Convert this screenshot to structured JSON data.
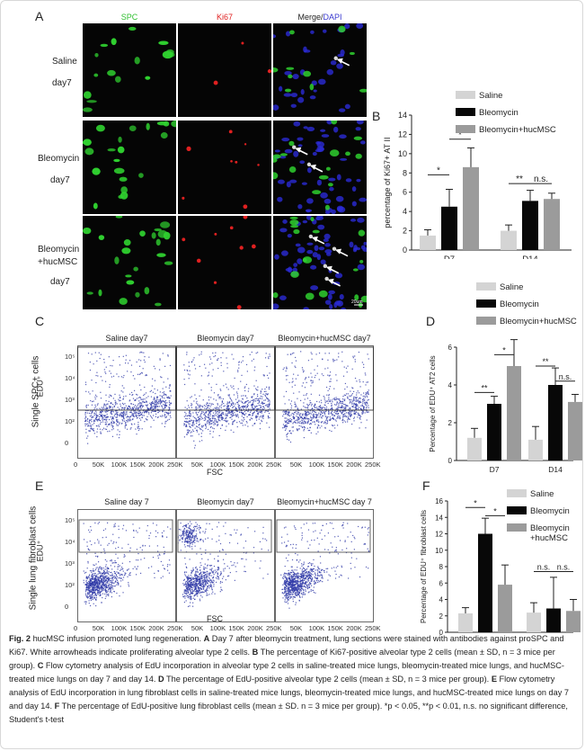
{
  "colors": {
    "saline": "#d4d4d4",
    "bleomycin": "#080808",
    "hucmsc": "#9b9b9b",
    "flow_dots": "#2f3aa8",
    "spc_green": "#2fd02f",
    "ki67_red": "#e02020",
    "dapi_blue": "#2a2ad6"
  },
  "panel_a": {
    "letter": "A",
    "col_spc": "SPC",
    "col_ki67": "Ki67",
    "col_merge": "Merge/",
    "col_dapi": "DAPI",
    "rows": [
      {
        "line1": "Saline",
        "line2": "day7"
      },
      {
        "line1": "Bleomycin",
        "line2": "day7"
      },
      {
        "line1": "Bleomycin",
        "line2": "+hucMSC",
        "line3": "day7"
      }
    ],
    "scale_bar": "20um"
  },
  "panel_b": {
    "letter": "B"
  },
  "panel_c": {
    "letter": "C",
    "ylabel_outer": "Single SPC+ cells",
    "ylabel_inner": "EDU⁺",
    "xlabel": "FSC",
    "plot_titles": [
      "Saline  day7",
      "Bleomycin  day7",
      "Bleomycin+hucMSC   day7"
    ],
    "y_ticks": [
      "10⁵",
      "10⁴",
      "10³",
      "10²",
      "0"
    ],
    "x_ticks_first": [
      "0",
      "50K",
      "100K",
      "150K",
      "200K",
      "250K"
    ],
    "x_ticks_rest": [
      "50K",
      "100K",
      "150K",
      "200K",
      "250K"
    ]
  },
  "panel_d": {
    "letter": "D"
  },
  "panel_e": {
    "letter": "E",
    "ylabel_outer": "Single lung fibroblast cells",
    "ylabel_inner": "EDU⁺",
    "xlabel": "FSC",
    "plot_titles": [
      "Saline  day 7",
      "Bleomycin   day7",
      "Bleomycin+hucMSC   day 7"
    ],
    "y_ticks": [
      "10⁵",
      "10⁴",
      "10³",
      "10²",
      "0"
    ],
    "x_ticks_first": [
      "0",
      "50K",
      "100K",
      "150K",
      "200K",
      "250K"
    ],
    "x_ticks_rest": [
      "50K",
      "100K",
      "150K",
      "200K",
      "250K"
    ]
  },
  "panel_f": {
    "letter": "F"
  },
  "chart_data": [
    {
      "id": "B",
      "type": "bar",
      "ylabel": "percentage of Ki67+ AT II",
      "ylim": [
        0,
        14
      ],
      "yticks": [
        0,
        2,
        4,
        6,
        8,
        10,
        12,
        14
      ],
      "categories": [
        "D7",
        "D14"
      ],
      "legend": [
        "Saline",
        "Bleomycin",
        "Bleomycin+hucMSC"
      ],
      "legend_position": "top-right",
      "series": [
        {
          "name": "Saline",
          "values": [
            1.5,
            2.0
          ],
          "errors": [
            0.6,
            0.6
          ]
        },
        {
          "name": "Bleomycin",
          "values": [
            4.5,
            5.1
          ],
          "errors": [
            1.8,
            1.1
          ]
        },
        {
          "name": "Bleomycin+hucMSC",
          "values": [
            8.6,
            5.3
          ],
          "errors": [
            2.0,
            0.6
          ]
        }
      ],
      "annotations": [
        {
          "text": "*",
          "group": 0,
          "from": 0,
          "to": 1,
          "level": 7.8
        },
        {
          "text": "*",
          "group": 0,
          "from": 1,
          "to": 2,
          "level": 11.5
        },
        {
          "text": "**",
          "group": 1,
          "from": 0,
          "to": 1,
          "level": 6.9
        },
        {
          "text": "n.s.",
          "group": 1,
          "from": 1,
          "to": 2,
          "level": 6.9
        }
      ]
    },
    {
      "id": "D",
      "type": "bar",
      "ylabel": "Percentage of EDU⁺ AT2 cells",
      "ylim": [
        0,
        6
      ],
      "yticks": [
        0,
        2,
        4,
        6
      ],
      "categories": [
        "D7",
        "D14"
      ],
      "legend": [
        "Saline",
        "Bleomycin",
        "Bleomycin+hucMSC"
      ],
      "legend_position": "top-right",
      "series": [
        {
          "name": "Saline",
          "values": [
            1.2,
            1.1
          ],
          "errors": [
            0.5,
            0.7
          ]
        },
        {
          "name": "Bleomycin",
          "values": [
            3.0,
            4.0
          ],
          "errors": [
            0.4,
            0.9
          ]
        },
        {
          "name": "Bleomycin+hucMSC",
          "values": [
            5.0,
            3.1
          ],
          "errors": [
            1.4,
            0.4
          ]
        }
      ],
      "annotations": [
        {
          "text": "**",
          "group": 0,
          "from": 0,
          "to": 1,
          "level": 3.6
        },
        {
          "text": "*",
          "group": 0,
          "from": 1,
          "to": 2,
          "level": 5.6
        },
        {
          "text": "**",
          "group": 1,
          "from": 0,
          "to": 1,
          "level": 5.0
        },
        {
          "text": "n.s.",
          "group": 1,
          "from": 1,
          "to": 2,
          "level": 4.2
        }
      ]
    },
    {
      "id": "F",
      "type": "bar",
      "ylabel": "Percentage of EDU⁺ fibroblast cells",
      "ylim": [
        0,
        16
      ],
      "yticks": [
        0,
        2,
        4,
        6,
        8,
        10,
        12,
        14,
        16
      ],
      "categories": [
        "D7",
        "D14"
      ],
      "legend": [
        "Saline",
        "Bleomycin",
        "Bleomycin\n+hucMSC"
      ],
      "legend_position": "top-right",
      "series": [
        {
          "name": "Saline",
          "values": [
            2.3,
            2.4
          ],
          "errors": [
            0.7,
            1.2
          ]
        },
        {
          "name": "Bleomycin",
          "values": [
            12.0,
            2.9
          ],
          "errors": [
            1.9,
            3.8
          ]
        },
        {
          "name": "Bleomycin+hucMSC",
          "values": [
            5.8,
            2.6
          ],
          "errors": [
            2.4,
            1.4
          ]
        }
      ],
      "annotations": [
        {
          "text": "*",
          "group": 0,
          "from": 0,
          "to": 1,
          "level": 15.2
        },
        {
          "text": "*",
          "group": 0,
          "from": 1,
          "to": 2,
          "level": 14.2
        },
        {
          "text": "n.s.",
          "group": 1,
          "from": 0,
          "to": 1,
          "level": 7.4
        },
        {
          "text": "n.s.",
          "group": 1,
          "from": 1,
          "to": 2,
          "level": 7.4
        }
      ]
    }
  ],
  "caption": {
    "fig_label": "Fig. 2",
    "title": "hucMSC infusion promoted lung regeneration.",
    "a_label": "A",
    "a_text": "Day 7 after bleomycin treatment, lung sections were stained with antibodies against proSPC and Ki67. White arrowheads indicate proliferating alveolar type 2 cells.",
    "b_label": "B",
    "b_text": "The percentage of Ki67-positive alveolar type 2 cells (mean ± SD, n = 3 mice per group).",
    "c_label": "C",
    "c_text": "Flow cytometry analysis of EdU incorporation in alveolar type 2 cells in saline-treated mice lungs, bleomycin-treated mice lungs, and hucMSC-treated mice lungs on day 7 and day 14.",
    "d_label": "D",
    "d_text": "The percentage of EdU-positive alveolar type 2 cells (mean ± SD, n = 3 mice per group).",
    "e_label": "E",
    "e_text": "Flow cytometry analysis of EdU incorporation in lung fibroblast cells in saline-treated mice lungs, bleomycin-treated mice lungs, and hucMSC-treated mice lungs on day 7 and day 14.",
    "f_label": "F",
    "f_text": "The percentage of EdU-positive lung fibroblast cells (mean ± SD. n = 3 mice per group). *p < 0.05, **p < 0.01, n.s. no significant difference, Student's t-test"
  }
}
